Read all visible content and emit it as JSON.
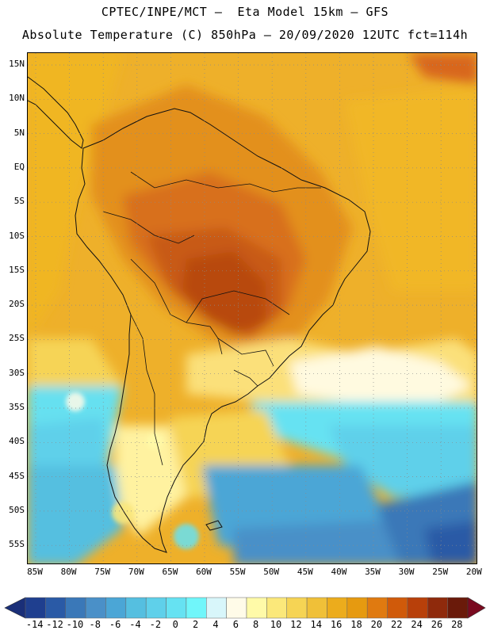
{
  "header": {
    "line1": "CPTEC/INPE/MCT —  Eta Model 15km — GFS",
    "line2": "Absolute Temperature (C) 850hPa — 20/09/2020 12UTC fct=114h"
  },
  "map": {
    "lat_labels": [
      "15N",
      "10N",
      "5N",
      "EQ",
      "5S",
      "10S",
      "15S",
      "20S",
      "25S",
      "30S",
      "35S",
      "40S",
      "45S",
      "50S",
      "55S"
    ],
    "lon_labels": [
      "85W",
      "80W",
      "75W",
      "70W",
      "65W",
      "60W",
      "55W",
      "50W",
      "45W",
      "40W",
      "35W",
      "30W",
      "25W",
      "20W"
    ]
  },
  "colorbar": {
    "labels": [
      "-14",
      "-12",
      "-10",
      "-8",
      "-6",
      "-4",
      "-2",
      "0",
      "2",
      "4",
      "6",
      "8",
      "10",
      "12",
      "14",
      "16",
      "18",
      "20",
      "22",
      "24",
      "26",
      "28"
    ],
    "colors": [
      "#1f3f8f",
      "#2a5aa6",
      "#3a78b8",
      "#4a90c8",
      "#4ba6d6",
      "#55bfe0",
      "#5fd0ea",
      "#66e2f2",
      "#70f6fa",
      "#d8f6fa",
      "#fffbe8",
      "#fffaa8",
      "#fbe87a",
      "#f6d454",
      "#f0c038",
      "#ecac1c",
      "#e69a10",
      "#e07a10",
      "#d05a0a",
      "#b8400a",
      "#8f2a0c",
      "#6a1a0a"
    ],
    "left_arrow_color": "#1a2f78",
    "right_arrow_color": "#7a0a20"
  }
}
